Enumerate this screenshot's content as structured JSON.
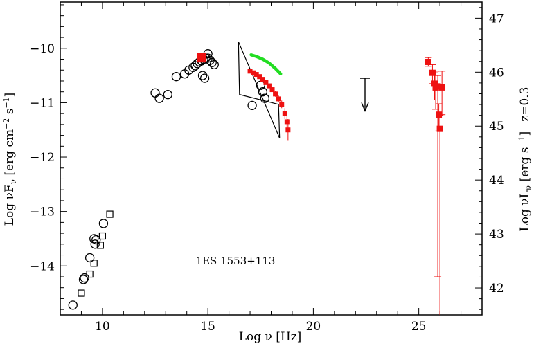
{
  "chart_data": {
    "type": "scatter",
    "title": "",
    "annotation": "1ES 1553+113",
    "xlabel": "Log ν [Hz]",
    "ylabel_left": {
      "prefix": "Log νF",
      "sub": "ν",
      "unit_open": " [erg cm",
      "exp1": "−2",
      "mid": " s",
      "exp2": "−1",
      "unit_close": "]"
    },
    "ylabel_right": {
      "prefix": "Log νL",
      "sub": "ν",
      "unit_open": " [erg s",
      "exp": "−1",
      "unit_close": "]",
      "extra": "z=0.3"
    },
    "xlim": [
      8.0,
      28.0
    ],
    "ylim": [
      -14.9,
      -9.15
    ],
    "ylim_right": [
      41.5,
      47.3
    ],
    "x_ticks": [
      10,
      15,
      20,
      25
    ],
    "x_tick_labels": [
      "10",
      "15",
      "20",
      "25"
    ],
    "y_ticks": [
      -10,
      -11,
      -12,
      -13,
      -14
    ],
    "y_tick_labels": [
      "−10",
      "−11",
      "−12",
      "−13",
      "−14"
    ],
    "y_right_ticks": [
      42,
      43,
      44,
      45,
      46,
      47
    ],
    "y_right_tick_labels": [
      "42",
      "43",
      "44",
      "45",
      "46",
      "47"
    ],
    "grid": false,
    "colors": {
      "red": "#ee1111",
      "green": "#22dd22",
      "black": "#000000"
    },
    "series": [
      {
        "marker": "open-circle",
        "color": "#000000",
        "x": [
          8.6,
          9.1,
          9.15,
          9.4,
          9.65,
          9.6,
          9.7,
          10.05,
          12.5,
          12.7,
          13.1,
          13.5,
          13.9,
          14.1,
          14.3,
          14.4,
          14.5,
          14.6,
          14.7,
          14.8,
          14.9,
          15.0,
          15.1,
          15.2,
          15.3,
          14.75,
          14.85,
          15.0,
          17.1,
          17.5,
          17.6,
          17.7
        ],
        "y": [
          -14.72,
          -14.25,
          -14.22,
          -13.85,
          -13.6,
          -13.5,
          -13.52,
          -13.22,
          -10.82,
          -10.92,
          -10.85,
          -10.52,
          -10.47,
          -10.4,
          -10.35,
          -10.32,
          -10.28,
          -10.25,
          -10.23,
          -10.2,
          -10.18,
          -10.18,
          -10.22,
          -10.26,
          -10.3,
          -10.5,
          -10.55,
          -10.1,
          -11.05,
          -10.68,
          -10.8,
          -10.92
        ]
      },
      {
        "marker": "open-square",
        "color": "#000000",
        "x": [
          9.0,
          9.4,
          9.6,
          9.9,
          10.0,
          10.35
        ],
        "y": [
          -14.5,
          -14.15,
          -13.95,
          -13.62,
          -13.45,
          -13.05
        ]
      },
      {
        "marker": "filled-square",
        "color": "#ee1111",
        "x": [
          14.7
        ],
        "y": [
          -10.17
        ]
      },
      {
        "marker": "filled-square-small",
        "color": "#ee1111",
        "x": [
          17.0,
          17.15,
          17.3,
          17.45,
          17.6,
          17.75,
          17.9,
          18.05,
          18.2,
          18.35,
          18.5,
          18.65,
          18.75,
          18.8
        ],
        "y": [
          -10.42,
          -10.45,
          -10.48,
          -10.52,
          -10.57,
          -10.63,
          -10.69,
          -10.76,
          -10.84,
          -10.93,
          -11.03,
          -11.2,
          -11.35,
          -11.5
        ],
        "yerr": [
          0.03,
          0.03,
          0.03,
          0.03,
          0.03,
          0.04,
          0.04,
          0.04,
          0.05,
          0.06,
          0.07,
          0.1,
          0.12,
          0.2
        ]
      },
      {
        "marker": "filled-square-errorbar",
        "color": "#ee1111",
        "x": [
          25.45,
          25.65,
          25.75,
          25.8,
          25.9,
          25.95,
          26.0,
          26.1
        ],
        "y": [
          -10.25,
          -10.45,
          -10.65,
          -10.72,
          -10.7,
          -11.22,
          -11.48,
          -10.72
        ],
        "yerr_low": [
          0.08,
          0.2,
          0.3,
          0.4,
          3.5,
          0.3,
          3.7,
          0.5
        ],
        "yerr_high": [
          0.08,
          0.15,
          0.2,
          0.3,
          0.2,
          0.2,
          0.25,
          0.3
        ]
      },
      {
        "marker": "green-curve",
        "color": "#22dd22",
        "x": [
          17.05,
          17.3,
          17.6,
          17.9,
          18.2,
          18.45
        ],
        "y": [
          -10.12,
          -10.15,
          -10.2,
          -10.27,
          -10.37,
          -10.47
        ]
      }
    ],
    "bowtie": {
      "x": [
        16.45,
        16.5,
        18.35,
        18.4
      ],
      "y": [
        -9.88,
        -10.85,
        -11.03,
        -11.65
      ]
    },
    "upper_limit": {
      "x": 22.45,
      "y": -10.55,
      "tail": -11.15
    }
  }
}
